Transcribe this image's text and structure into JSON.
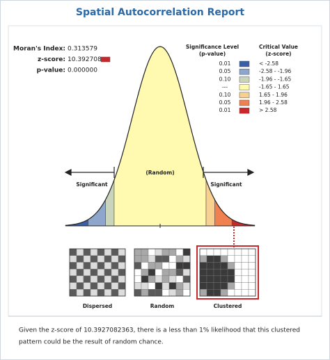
{
  "header": {
    "title": "Spatial Autocorrelation Report"
  },
  "stats": [
    {
      "label": "Moran's Index:",
      "value": "0.313579"
    },
    {
      "label": "z-score:",
      "value": "10.392708"
    },
    {
      "label": "p-value:",
      "value": "0.000000"
    }
  ],
  "marker_color": "#c8282c",
  "legend": {
    "p_title": [
      "Significance Level",
      "(p-value)"
    ],
    "z_title": [
      "Critical Value",
      "(z-score)"
    ],
    "rows": [
      {
        "p": "0.01",
        "z": "< -2.58",
        "color": "#3a5ea8"
      },
      {
        "p": "0.05",
        "z": "-2.58 - -1.96",
        "color": "#8ea6cc"
      },
      {
        "p": "0.10",
        "z": "-1.96 - -1.65",
        "color": "#c9d4bb"
      },
      {
        "p": "---",
        "z": "-1.65 - 1.65",
        "color": "#fffab0"
      },
      {
        "p": "0.10",
        "z": "1.65 - 1.96",
        "color": "#f7cf8e"
      },
      {
        "p": "0.05",
        "z": "1.96 - 2.58",
        "color": "#f08050"
      },
      {
        "p": "0.01",
        "z": "> 2.58",
        "color": "#c8282c"
      }
    ]
  },
  "curve": {
    "center_label": "(Random)",
    "left_label": "Significant",
    "right_label": "Significant"
  },
  "patterns": [
    "Dispersed",
    "Random",
    "Clustered"
  ],
  "footer": {
    "lines": [
      "Given the z-score of 10.3927082363, there is a less than 1% likelihood that this clustered",
      "pattern could be the result of random chance."
    ]
  }
}
